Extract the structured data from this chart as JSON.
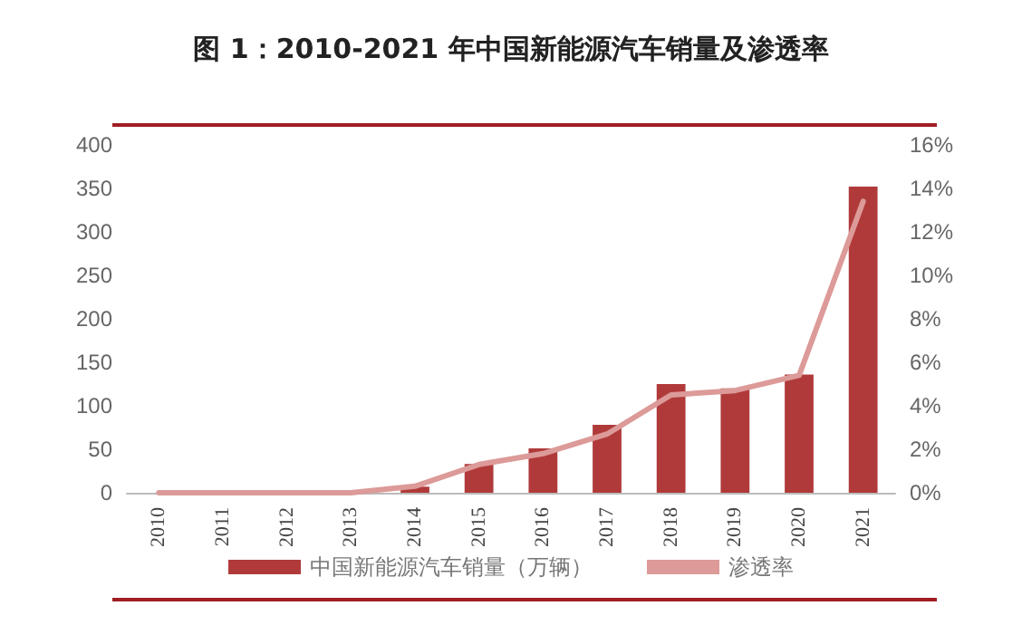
{
  "chart_data": {
    "type": "bar",
    "title": "图 1：2010-2021 年中国新能源汽车销量及渗透率",
    "categories": [
      "2010",
      "2011",
      "2012",
      "2013",
      "2014",
      "2015",
      "2016",
      "2017",
      "2018",
      "2019",
      "2020",
      "2021"
    ],
    "series": [
      {
        "name": "中国新能源汽车销量（万辆）",
        "color": "#b03a3a",
        "values": [
          null,
          null,
          null,
          null,
          7,
          33,
          51,
          78,
          125,
          120,
          136,
          352
        ]
      },
      {
        "name": "渗透率",
        "type": "line",
        "axis": "y2",
        "color": "#dc9a98",
        "values": [
          0,
          0,
          0,
          0,
          0.3,
          1.3,
          1.8,
          2.7,
          4.5,
          4.7,
          5.4,
          13.4
        ]
      }
    ],
    "ylim": [
      0,
      400
    ],
    "yticks": [
      0,
      50,
      100,
      150,
      200,
      250,
      300,
      350,
      400
    ],
    "y2lim": [
      0,
      16
    ],
    "y2ticks": [
      {
        "value": 0,
        "label": "0%"
      },
      {
        "value": 2,
        "label": "2%"
      },
      {
        "value": 4,
        "label": "4%"
      },
      {
        "value": 6,
        "label": "6%"
      },
      {
        "value": 8,
        "label": "8%"
      },
      {
        "value": 10,
        "label": "10%"
      },
      {
        "value": 12,
        "label": "12%"
      },
      {
        "value": 14,
        "label": "14%"
      },
      {
        "value": 16,
        "label": "16%"
      }
    ],
    "grid": false,
    "legend": "bottom",
    "marker": "none"
  }
}
